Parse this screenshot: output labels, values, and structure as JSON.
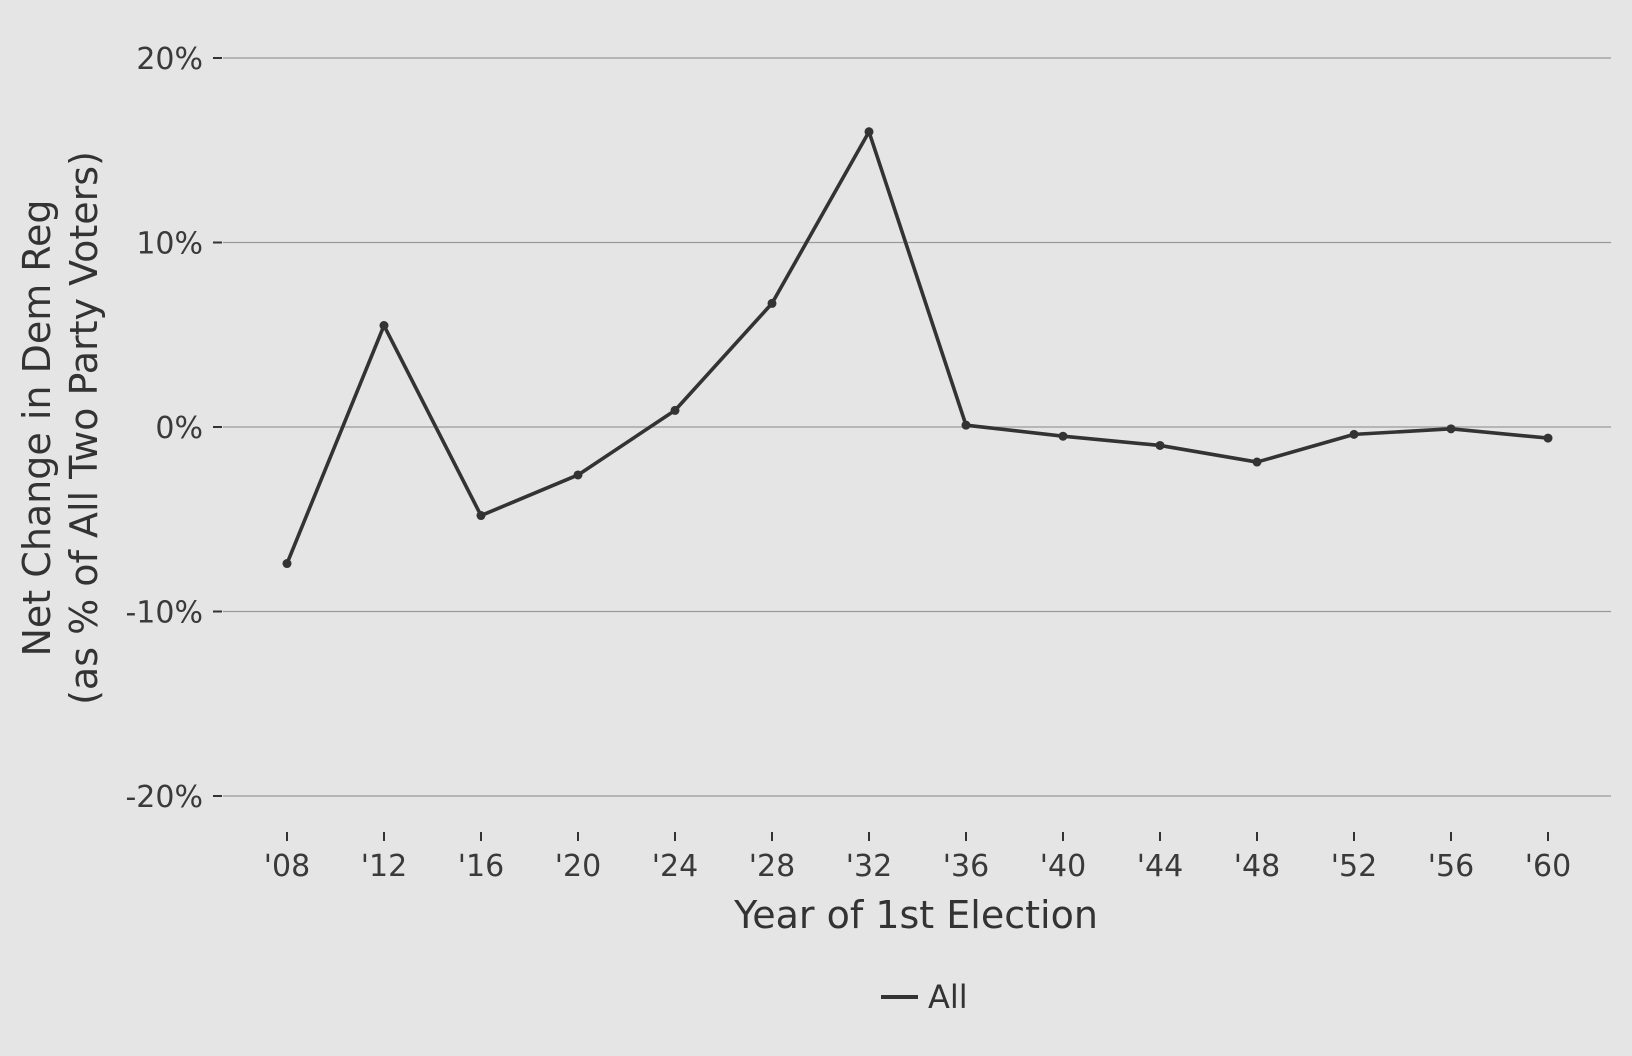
{
  "chart_data": {
    "type": "line",
    "title": "",
    "xlabel": "Year of 1st Election",
    "ylabel_line1": "Net Change in Dem Reg",
    "ylabel_line2": "(as % of All Two Party Voters)",
    "categories": [
      "'08",
      "'12",
      "'16",
      "'20",
      "'24",
      "'28",
      "'32",
      "'36",
      "'40",
      "'44",
      "'48",
      "'52",
      "'56",
      "'60"
    ],
    "series": [
      {
        "name": "All",
        "color": "#333333",
        "values": [
          -7.4,
          5.5,
          -4.8,
          -2.6,
          0.9,
          6.7,
          16.0,
          0.1,
          -0.5,
          -1.0,
          -1.9,
          -0.4,
          -0.1,
          -0.6
        ]
      }
    ],
    "ylim": [
      -20,
      20
    ],
    "yticks": [
      20,
      10,
      0,
      -10,
      -20
    ],
    "ytick_labels": [
      "20%",
      "10%",
      "0%",
      "-10%",
      "-20%"
    ],
    "grid": true,
    "legend_position": "bottom-center",
    "legend_label": "All"
  },
  "colors": {
    "background": "#e5e5e5",
    "grid": "#9a9a9a",
    "line": "#333333",
    "text": "#333333"
  }
}
